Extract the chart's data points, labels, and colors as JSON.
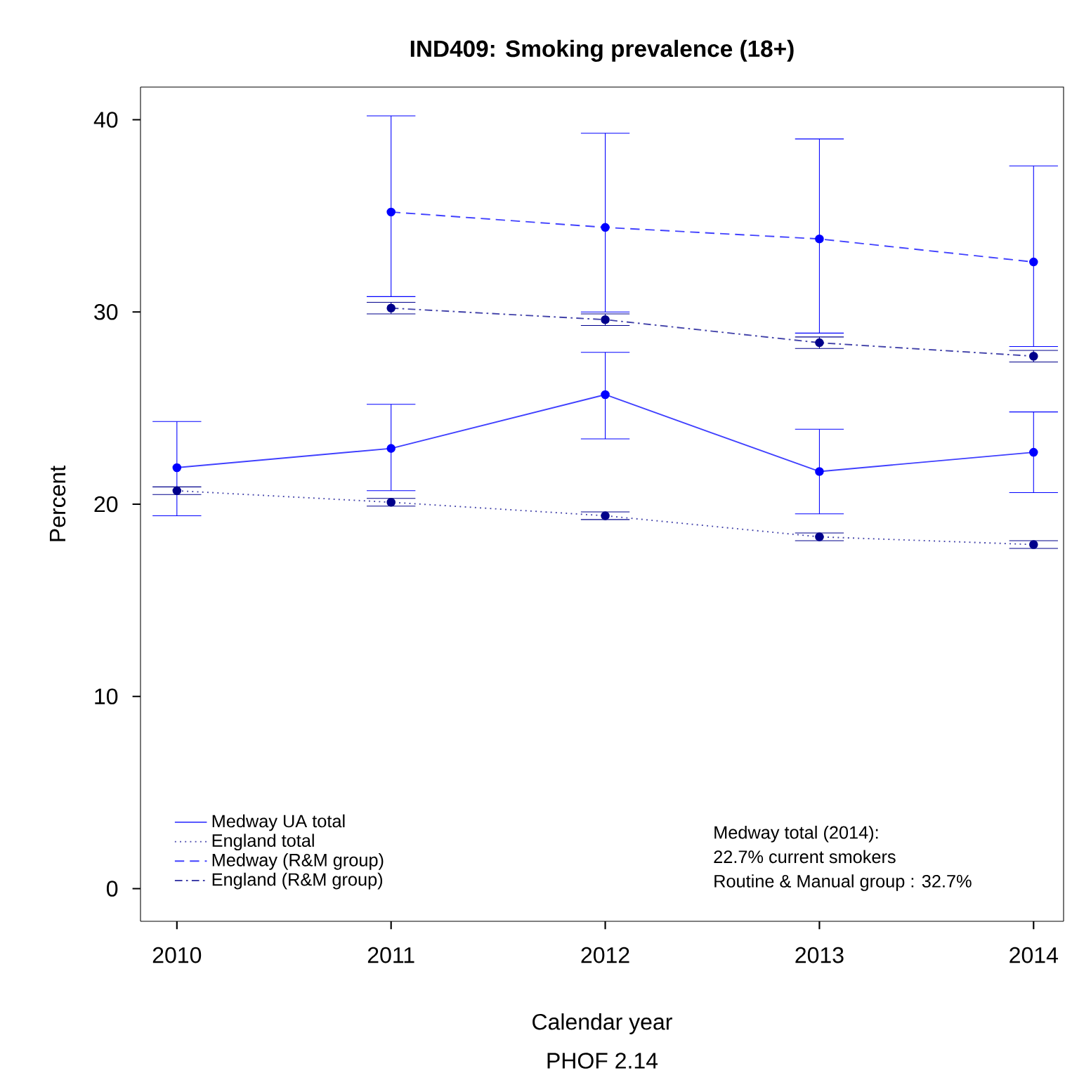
{
  "chart_data": {
    "type": "line",
    "title": "IND409: Smoking prevalence (18+)",
    "xlabel": "Calendar year",
    "ylabel": "Percent",
    "x": [
      2010,
      2011,
      2012,
      2013,
      2014
    ],
    "xlim": [
      2009.83,
      2014.14
    ],
    "ylim": [
      -1.7,
      41.7
    ],
    "xticks": [
      2010,
      2011,
      2012,
      2013,
      2014
    ],
    "yticks": [
      0,
      10,
      20,
      30,
      40
    ],
    "marker": "circle",
    "legend": "bottom left",
    "grid": false,
    "annotations": [
      "Medway total (2014):",
      "22.7% current smokers",
      "Routine & Manual group : 32.7%",
      "PHOF 2.14"
    ],
    "series": [
      {
        "name": "Medway UA total",
        "color": "#0000ff",
        "line_style": "solid",
        "values": [
          21.9,
          22.9,
          25.7,
          21.7,
          22.7
        ],
        "errors": [
          [
            19.4,
            24.3
          ],
          [
            20.7,
            25.2
          ],
          [
            23.4,
            27.9
          ],
          [
            19.5,
            23.9
          ],
          [
            20.6,
            24.8
          ]
        ]
      },
      {
        "name": "England total",
        "color": "#00008b",
        "line_style": "dotted",
        "values": [
          20.7,
          20.1,
          19.4,
          18.3,
          17.9
        ],
        "errors": [
          [
            20.5,
            20.9
          ],
          [
            19.9,
            20.3
          ],
          [
            19.2,
            19.6
          ],
          [
            18.1,
            18.5
          ],
          [
            17.7,
            18.1
          ]
        ]
      },
      {
        "name": "Medway (R&M group)",
        "color": "#0000ff",
        "line_style": "dashed",
        "x": [
          2011,
          2012,
          2013,
          2014
        ],
        "values": [
          35.2,
          34.4,
          33.8,
          32.6
        ],
        "errors": [
          [
            30.8,
            40.2
          ],
          [
            30.0,
            39.3
          ],
          [
            28.9,
            39.0
          ],
          [
            28.2,
            37.6
          ]
        ]
      },
      {
        "name": "England (R&M group)",
        "color": "#00008b",
        "line_style": "dashdotted",
        "x": [
          2011,
          2012,
          2013,
          2014
        ],
        "values": [
          30.2,
          29.6,
          28.4,
          27.7
        ],
        "errors": [
          [
            29.9,
            30.5
          ],
          [
            29.3,
            29.9
          ],
          [
            28.1,
            28.7
          ],
          [
            27.4,
            28.0
          ]
        ]
      }
    ]
  }
}
